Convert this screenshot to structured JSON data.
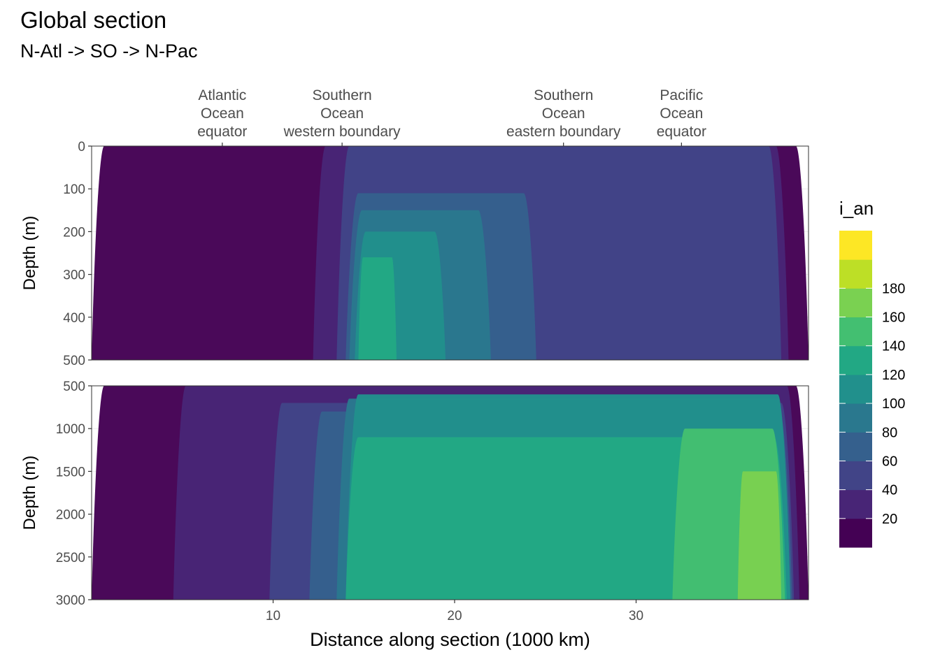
{
  "chart_data": {
    "type": "heatmap",
    "title": "Global section",
    "subtitle": "N-Atl -> SO -> N-Pac",
    "xlabel": "Distance along section (1000 km)",
    "ylabel": "Depth (m)",
    "xlim": [
      0,
      39.5
    ],
    "x_ticks": [
      10,
      20,
      30
    ],
    "x_tick_labels": [
      "10",
      "20",
      "30"
    ],
    "top_markers": [
      {
        "x": 7.2,
        "lines": [
          "Atlantic",
          "Ocean",
          "equator"
        ]
      },
      {
        "x": 13.8,
        "lines": [
          "Southern",
          "Ocean",
          "western boundary"
        ]
      },
      {
        "x": 26.0,
        "lines": [
          "Southern",
          "Ocean",
          "eastern boundary"
        ]
      },
      {
        "x": 32.5,
        "lines": [
          "Pacific",
          "Ocean",
          "equator"
        ]
      }
    ],
    "panels": [
      {
        "name": "upper",
        "ylim": [
          0,
          500
        ],
        "y_ticks": [
          0,
          100,
          200,
          300,
          400,
          500
        ],
        "y_tick_labels": [
          "0",
          "100",
          "200",
          "300",
          "400",
          "500"
        ]
      },
      {
        "name": "lower",
        "ylim": [
          500,
          3000
        ],
        "y_ticks": [
          500,
          1000,
          1500,
          2000,
          2500,
          3000
        ],
        "y_tick_labels": [
          "500",
          "1000",
          "1500",
          "2000",
          "2500",
          "3000"
        ]
      }
    ],
    "legend": {
      "title": "i_an",
      "position": "right",
      "breaks": [
        20,
        40,
        60,
        80,
        100,
        120,
        140,
        160,
        180
      ],
      "break_labels": [
        "20",
        "40",
        "60",
        "80",
        "100",
        "120",
        "140",
        "160",
        "180"
      ],
      "colors": [
        "#440154",
        "#482576",
        "#414487",
        "#35608d",
        "#2a788e",
        "#21908c",
        "#22a884",
        "#43bf71",
        "#7ad151",
        "#bddf26",
        "#fde725"
      ]
    },
    "series": [
      {
        "name": "level_0_20",
        "bands": [
          {
            "x": [
              0,
              39.5
            ],
            "depth": [
              0,
              3000
            ]
          }
        ]
      },
      {
        "name": "level_20_40",
        "bands": [
          {
            "x": [
              12.2,
              38.4
            ],
            "depth": [
              0,
              500
            ]
          },
          {
            "x": [
              4.5,
              39.0
            ],
            "depth": [
              500,
              3000
            ]
          }
        ]
      },
      {
        "name": "level_40_60",
        "bands": [
          {
            "x": [
              13.5,
              38.0
            ],
            "depth": [
              0,
              500
            ]
          },
          {
            "x": [
              9.8,
              38.7
            ],
            "depth": [
              700,
              3000
            ]
          }
        ]
      },
      {
        "name": "level_60_80",
        "bands": [
          {
            "x": [
              14.0,
              24.5
            ],
            "depth": [
              110,
              500
            ]
          },
          {
            "x": [
              12.0,
              38.6
            ],
            "depth": [
              800,
              3000
            ]
          }
        ]
      },
      {
        "name": "level_80_100",
        "bands": [
          {
            "x": [
              14.2,
              22.0
            ],
            "depth": [
              150,
              500
            ]
          },
          {
            "x": [
              13.5,
              38.5
            ],
            "depth": [
              650,
              3000
            ]
          }
        ]
      },
      {
        "name": "level_100_120",
        "bands": [
          {
            "x": [
              14.5,
              19.5
            ],
            "depth": [
              200,
              500
            ]
          },
          {
            "x": [
              14.0,
              38.5
            ],
            "depth": [
              600,
              3000
            ]
          }
        ]
      },
      {
        "name": "level_120_140",
        "bands": [
          {
            "x": [
              14.7,
              16.8
            ],
            "depth": [
              260,
              500
            ]
          },
          {
            "x": [
              14.0,
              38.3
            ],
            "depth": [
              1100,
              3000
            ]
          }
        ]
      },
      {
        "name": "level_140_160",
        "bands": [
          {
            "x": [
              32.0,
              38.2
            ],
            "depth": [
              1000,
              3000
            ]
          }
        ]
      },
      {
        "name": "level_160_180",
        "bands": [
          {
            "x": [
              35.6,
              38.0
            ],
            "depth": [
              1500,
              3000
            ]
          }
        ]
      },
      {
        "name": "level_180_200",
        "bands": []
      }
    ],
    "gridlines": true
  }
}
